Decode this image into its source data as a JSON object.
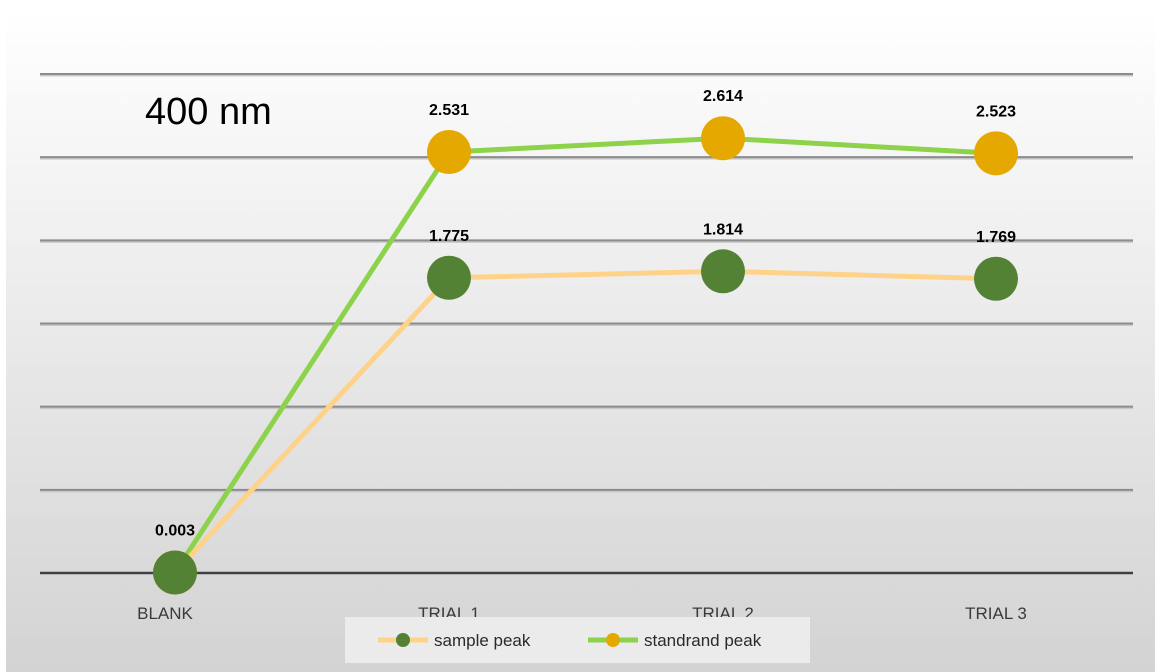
{
  "chart_data": {
    "type": "line",
    "title": "400 nm",
    "categories": [
      "BLANK",
      "TRIAL 1",
      "TRIAL 2",
      "TRIAL 3"
    ],
    "series": [
      {
        "name": "sample peak",
        "values": [
          0.003,
          1.775,
          1.814,
          1.769
        ],
        "line_color": "#ffd28a",
        "marker_color": "#548235",
        "show_labels": [
          false,
          true,
          true,
          true
        ]
      },
      {
        "name": "standrand peak",
        "values": [
          0.003,
          2.531,
          2.614,
          2.523
        ],
        "line_color": "#8cd24a",
        "marker_color": "#e5a800",
        "show_labels": [
          true,
          true,
          true,
          true
        ]
      }
    ],
    "ylim": [
      0,
      3
    ],
    "grid": true,
    "legend_position": "bottom"
  },
  "colors": {
    "background_top": "#ffffff",
    "background_bottom": "#d3d3d3",
    "gridline": "#8c8c8c",
    "axis": "#404040"
  }
}
